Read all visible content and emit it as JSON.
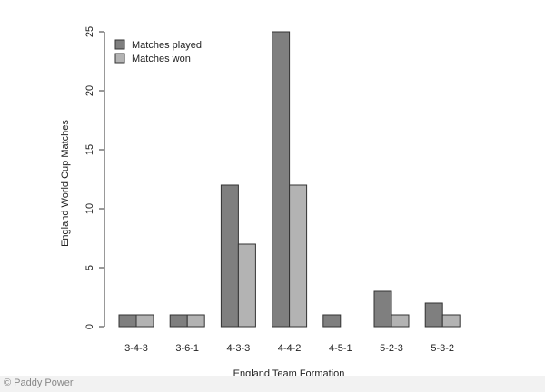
{
  "chart_data": {
    "type": "bar",
    "categories": [
      "3-4-3",
      "3-6-1",
      "4-3-3",
      "4-4-2",
      "4-5-1",
      "5-2-3",
      "5-3-2"
    ],
    "series": [
      {
        "name": "Matches played",
        "values": [
          1,
          1,
          12,
          25,
          1,
          3,
          2
        ],
        "color": "#7f7f7f"
      },
      {
        "name": "Matches won",
        "values": [
          1,
          1,
          7,
          12,
          0,
          1,
          1
        ],
        "color": "#b3b3b3"
      }
    ],
    "xlabel": "England Team Formation",
    "ylabel": "England World Cup Matches",
    "ylim": [
      0,
      25
    ],
    "yticks": [
      0,
      5,
      10,
      15,
      20,
      25
    ],
    "legend_position": "top-left",
    "grid": false
  },
  "footer": {
    "credit": "© Paddy Power"
  }
}
